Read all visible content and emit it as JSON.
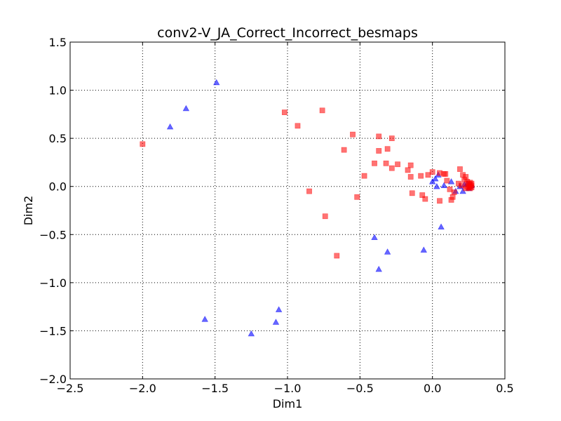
{
  "chart_data": {
    "type": "scatter",
    "title": "conv2-V_JA_Correct_Incorrect_besmaps",
    "xlabel": "Dim1",
    "ylabel": "Dim2",
    "xlim": [
      -2.5,
      0.5
    ],
    "ylim": [
      -2.0,
      1.5
    ],
    "xticks": [
      -2.5,
      -2.0,
      -1.5,
      -1.0,
      -0.5,
      0.0,
      0.5
    ],
    "yticks": [
      -2.0,
      -1.5,
      -1.0,
      -0.5,
      0.0,
      0.5,
      1.0,
      1.5
    ],
    "xtick_labels": [
      "−2.5",
      "−2.0",
      "−1.5",
      "−1.0",
      "−0.5",
      "0.0",
      "0.5"
    ],
    "ytick_labels": [
      "−2.0",
      "−1.5",
      "−1.0",
      "−0.5",
      "0.0",
      "0.5",
      "1.0",
      "1.5"
    ],
    "grid": true,
    "series": [
      {
        "marker": "triangle",
        "color": "#0000ff",
        "points": [
          [
            -1.49,
            1.08
          ],
          [
            -1.7,
            0.81
          ],
          [
            -1.81,
            0.62
          ],
          [
            -1.57,
            -1.38
          ],
          [
            -1.25,
            -1.53
          ],
          [
            -1.08,
            -1.41
          ],
          [
            -1.06,
            -1.28
          ],
          [
            -0.4,
            -0.53
          ],
          [
            -0.37,
            -0.86
          ],
          [
            -0.31,
            -0.68
          ],
          [
            -0.06,
            -0.66
          ],
          [
            0.06,
            -0.42
          ],
          [
            0.0,
            0.05
          ],
          [
            0.02,
            0.08
          ],
          [
            0.03,
            0.0
          ],
          [
            0.04,
            0.12
          ],
          [
            0.08,
            0.01
          ],
          [
            0.13,
            0.05
          ],
          [
            0.16,
            -0.05
          ],
          [
            0.19,
            0.0
          ],
          [
            0.21,
            -0.05
          ],
          [
            0.22,
            0.02
          ],
          [
            0.24,
            0.03
          ],
          [
            0.25,
            -0.02
          ],
          [
            0.26,
            0.0
          ],
          [
            0.27,
            0.01
          ]
        ]
      },
      {
        "marker": "square",
        "color": "#ff0000",
        "points": [
          [
            -2.0,
            0.44
          ],
          [
            -1.02,
            0.77
          ],
          [
            -0.93,
            0.63
          ],
          [
            -0.76,
            0.79
          ],
          [
            -0.85,
            -0.05
          ],
          [
            -0.74,
            -0.31
          ],
          [
            -0.66,
            -0.72
          ],
          [
            -0.61,
            0.38
          ],
          [
            -0.55,
            0.54
          ],
          [
            -0.52,
            -0.11
          ],
          [
            -0.47,
            0.11
          ],
          [
            -0.4,
            0.24
          ],
          [
            -0.37,
            0.52
          ],
          [
            -0.37,
            0.37
          ],
          [
            -0.32,
            0.24
          ],
          [
            -0.31,
            0.39
          ],
          [
            -0.28,
            0.19
          ],
          [
            -0.28,
            0.5
          ],
          [
            -0.24,
            0.23
          ],
          [
            -0.17,
            0.17
          ],
          [
            -0.15,
            0.22
          ],
          [
            -0.15,
            0.1
          ],
          [
            -0.14,
            -0.07
          ],
          [
            -0.08,
            0.11
          ],
          [
            -0.07,
            -0.09
          ],
          [
            -0.05,
            -0.13
          ],
          [
            -0.03,
            0.12
          ],
          [
            0.0,
            0.15
          ],
          [
            0.05,
            0.14
          ],
          [
            0.05,
            -0.15
          ],
          [
            0.08,
            0.13
          ],
          [
            0.09,
            0.13
          ],
          [
            0.1,
            0.06
          ],
          [
            0.12,
            -0.03
          ],
          [
            0.13,
            -0.14
          ],
          [
            0.14,
            -0.11
          ],
          [
            0.15,
            -0.06
          ],
          [
            0.18,
            0.03
          ],
          [
            0.19,
            0.18
          ],
          [
            0.2,
            0.01
          ],
          [
            0.21,
            0.12
          ],
          [
            0.22,
            0.07
          ],
          [
            0.23,
            0.1
          ],
          [
            0.23,
            -0.02
          ],
          [
            0.24,
            0.05
          ],
          [
            0.24,
            0.0
          ],
          [
            0.25,
            0.03
          ],
          [
            0.25,
            -0.01
          ],
          [
            0.26,
            0.02
          ],
          [
            0.26,
            0.0
          ],
          [
            0.26,
            -0.02
          ],
          [
            0.27,
            0.01
          ],
          [
            0.27,
            0.03
          ],
          [
            0.27,
            -0.01
          ],
          [
            0.26,
            0.04
          ]
        ]
      }
    ]
  }
}
